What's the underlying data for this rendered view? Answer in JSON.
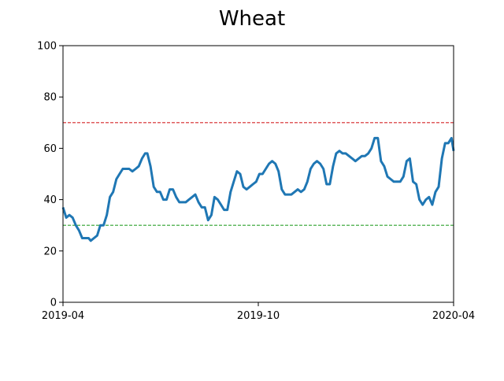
{
  "chart_data": {
    "type": "line",
    "title": "Wheat",
    "xlabel": "",
    "ylabel": "",
    "x_ticks": [
      "2019-04",
      "2019-10",
      "2020-04"
    ],
    "y_ticks": [
      0,
      20,
      40,
      60,
      80,
      100
    ],
    "ylim": [
      0,
      100
    ],
    "xlim": [
      "2019-04-01",
      "2020-04-01"
    ],
    "grid": false,
    "series": [
      {
        "color": "#1f77b4",
        "points": [
          [
            "2019-04-01",
            37
          ],
          [
            "2019-04-04",
            33
          ],
          [
            "2019-04-07",
            34
          ],
          [
            "2019-04-10",
            33
          ],
          [
            "2019-04-13",
            30
          ],
          [
            "2019-04-16",
            28
          ],
          [
            "2019-04-19",
            25
          ],
          [
            "2019-04-22",
            25
          ],
          [
            "2019-04-25",
            25
          ],
          [
            "2019-04-27",
            24
          ],
          [
            "2019-04-30",
            25
          ],
          [
            "2019-05-03",
            26
          ],
          [
            "2019-05-06",
            30
          ],
          [
            "2019-05-09",
            30
          ],
          [
            "2019-05-12",
            34
          ],
          [
            "2019-05-15",
            41
          ],
          [
            "2019-05-18",
            43
          ],
          [
            "2019-05-21",
            48
          ],
          [
            "2019-05-24",
            50
          ],
          [
            "2019-05-27",
            52
          ],
          [
            "2019-05-30",
            52
          ],
          [
            "2019-06-02",
            52
          ],
          [
            "2019-06-05",
            51
          ],
          [
            "2019-06-08",
            52
          ],
          [
            "2019-06-11",
            53
          ],
          [
            "2019-06-14",
            56
          ],
          [
            "2019-06-17",
            58
          ],
          [
            "2019-06-19",
            58
          ],
          [
            "2019-06-22",
            53
          ],
          [
            "2019-06-25",
            45
          ],
          [
            "2019-06-28",
            43
          ],
          [
            "2019-07-01",
            43
          ],
          [
            "2019-07-04",
            40
          ],
          [
            "2019-07-07",
            40
          ],
          [
            "2019-07-10",
            44
          ],
          [
            "2019-07-13",
            44
          ],
          [
            "2019-07-16",
            41
          ],
          [
            "2019-07-19",
            39
          ],
          [
            "2019-07-22",
            39
          ],
          [
            "2019-07-25",
            39
          ],
          [
            "2019-07-28",
            40
          ],
          [
            "2019-07-31",
            41
          ],
          [
            "2019-08-03",
            42
          ],
          [
            "2019-08-06",
            39
          ],
          [
            "2019-08-09",
            37
          ],
          [
            "2019-08-12",
            37
          ],
          [
            "2019-08-15",
            32
          ],
          [
            "2019-08-18",
            34
          ],
          [
            "2019-08-21",
            41
          ],
          [
            "2019-08-24",
            40
          ],
          [
            "2019-08-27",
            38
          ],
          [
            "2019-08-30",
            36
          ],
          [
            "2019-09-02",
            36
          ],
          [
            "2019-09-05",
            43
          ],
          [
            "2019-09-08",
            47
          ],
          [
            "2019-09-11",
            51
          ],
          [
            "2019-09-14",
            50
          ],
          [
            "2019-09-17",
            45
          ],
          [
            "2019-09-20",
            44
          ],
          [
            "2019-09-23",
            45
          ],
          [
            "2019-09-26",
            46
          ],
          [
            "2019-09-29",
            47
          ],
          [
            "2019-10-02",
            50
          ],
          [
            "2019-10-05",
            50
          ],
          [
            "2019-10-08",
            52
          ],
          [
            "2019-10-11",
            54
          ],
          [
            "2019-10-14",
            55
          ],
          [
            "2019-10-17",
            54
          ],
          [
            "2019-10-20",
            51
          ],
          [
            "2019-10-23",
            44
          ],
          [
            "2019-10-26",
            42
          ],
          [
            "2019-10-29",
            42
          ],
          [
            "2019-11-01",
            42
          ],
          [
            "2019-11-04",
            43
          ],
          [
            "2019-11-07",
            44
          ],
          [
            "2019-11-10",
            43
          ],
          [
            "2019-11-13",
            44
          ],
          [
            "2019-11-16",
            47
          ],
          [
            "2019-11-19",
            52
          ],
          [
            "2019-11-22",
            54
          ],
          [
            "2019-11-25",
            55
          ],
          [
            "2019-11-28",
            54
          ],
          [
            "2019-12-01",
            52
          ],
          [
            "2019-12-04",
            46
          ],
          [
            "2019-12-07",
            46
          ],
          [
            "2019-12-10",
            53
          ],
          [
            "2019-12-13",
            58
          ],
          [
            "2019-12-16",
            59
          ],
          [
            "2019-12-19",
            58
          ],
          [
            "2019-12-22",
            58
          ],
          [
            "2019-12-25",
            57
          ],
          [
            "2019-12-28",
            56
          ],
          [
            "2019-12-31",
            55
          ],
          [
            "2020-01-03",
            56
          ],
          [
            "2020-01-06",
            57
          ],
          [
            "2020-01-09",
            57
          ],
          [
            "2020-01-12",
            58
          ],
          [
            "2020-01-15",
            60
          ],
          [
            "2020-01-18",
            64
          ],
          [
            "2020-01-21",
            64
          ],
          [
            "2020-01-24",
            55
          ],
          [
            "2020-01-27",
            53
          ],
          [
            "2020-01-30",
            49
          ],
          [
            "2020-02-02",
            48
          ],
          [
            "2020-02-05",
            47
          ],
          [
            "2020-02-08",
            47
          ],
          [
            "2020-02-11",
            47
          ],
          [
            "2020-02-14",
            49
          ],
          [
            "2020-02-17",
            55
          ],
          [
            "2020-02-20",
            56
          ],
          [
            "2020-02-23",
            47
          ],
          [
            "2020-02-26",
            46
          ],
          [
            "2020-02-29",
            40
          ],
          [
            "2020-03-03",
            38
          ],
          [
            "2020-03-06",
            40
          ],
          [
            "2020-03-09",
            41
          ],
          [
            "2020-03-12",
            38
          ],
          [
            "2020-03-15",
            43
          ],
          [
            "2020-03-18",
            45
          ],
          [
            "2020-03-21",
            56
          ],
          [
            "2020-03-24",
            62
          ],
          [
            "2020-03-27",
            62
          ],
          [
            "2020-03-30",
            64
          ],
          [
            "2020-04-01",
            59
          ]
        ]
      }
    ],
    "reference_lines": [
      {
        "y": 70,
        "color": "#d62728",
        "style": "dashed"
      },
      {
        "y": 30,
        "color": "#2ca02c",
        "style": "dashed"
      }
    ]
  }
}
